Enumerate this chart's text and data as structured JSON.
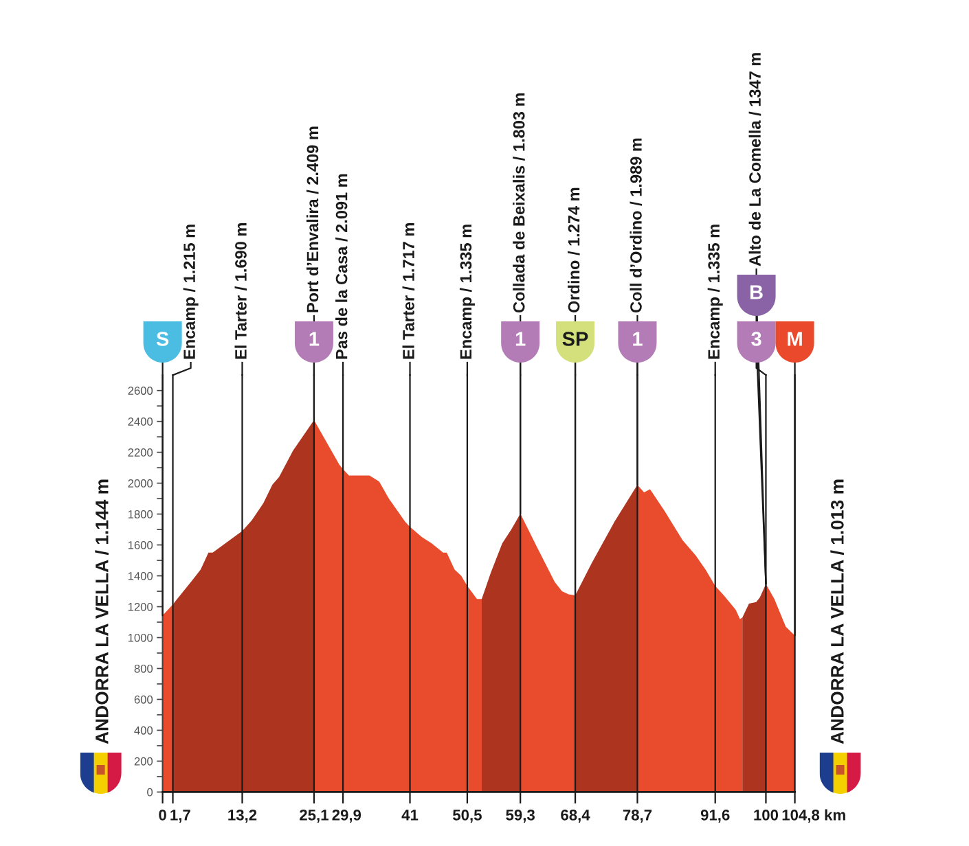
{
  "chart_data": {
    "type": "area",
    "ylabel": "ANDORRA LA VELLA / 1.144 m",
    "y2label": "ANDORRA LA VELLA / 1.013 m",
    "xlabel": "km",
    "x": [
      0,
      1.7,
      4.9,
      6.3,
      7.6,
      8.3,
      10.4,
      13.2,
      14.8,
      16.7,
      18.2,
      19.3,
      21.6,
      25.1,
      27.7,
      29.3,
      29.9,
      30.9,
      34.3,
      35.9,
      37.5,
      40.2,
      41,
      43.0,
      44.6,
      46.5,
      47.1,
      48.4,
      49.5,
      50.5,
      52.1,
      52.9,
      54.4,
      56.3,
      57.8,
      59.3,
      62.0,
      65.0,
      66.2,
      67.3,
      68.4,
      71.1,
      74.9,
      78.7,
      79.8,
      80.8,
      83.2,
      86.2,
      88.4,
      90.0,
      91.6,
      93.1,
      95.0,
      95.7,
      96.1,
      97.2,
      98.4,
      99.0,
      100,
      101.4,
      103.3,
      104.8
    ],
    "series": [
      {
        "color": "#e94c2d",
        "values": [
          1144,
          1215,
          null,
          null,
          null,
          null,
          null,
          null,
          null,
          null,
          null,
          null,
          null,
          2409,
          2230,
          2120,
          2091,
          2050,
          2050,
          2010,
          1900,
          1750,
          1717,
          1650,
          1610,
          1550,
          1550,
          1440,
          1400,
          1335,
          1250,
          1250,
          null,
          null,
          null,
          1803,
          1590,
          1360,
          1300,
          1280,
          1274,
          null,
          null,
          1989,
          1940,
          1960,
          1820,
          1630,
          1530,
          1440,
          1335,
          1270,
          1180,
          1120,
          1130,
          null,
          null,
          null,
          1347,
          1250,
          1070,
          1013
        ]
      },
      {
        "color": "#ad3520",
        "values": [
          null,
          1215,
          1370,
          1440,
          1550,
          1550,
          1610,
          1690,
          1760,
          1870,
          1990,
          2040,
          2210,
          2409,
          null,
          null,
          null,
          null,
          null,
          null,
          null,
          null,
          null,
          null,
          null,
          null,
          null,
          null,
          null,
          null,
          null,
          1250,
          1420,
          1610,
          1700,
          1803,
          null,
          null,
          null,
          null,
          1274,
          1480,
          1750,
          1989,
          null,
          null,
          null,
          null,
          null,
          null,
          null,
          null,
          null,
          null,
          1130,
          1220,
          1230,
          1260,
          1347,
          null,
          null,
          null
        ]
      }
    ],
    "xlim": [
      0,
      104.8
    ],
    "xticks": [
      0,
      {
        "value": 1.7,
        "label": "1,7"
      },
      {
        "value": 13.2,
        "label": "13,2"
      },
      {
        "value": 25.1,
        "label": "25,1"
      },
      {
        "value": 29.9,
        "label": "29,9"
      },
      41,
      {
        "value": 50.5,
        "label": "50,5"
      },
      {
        "value": 59.3,
        "label": "59,3"
      },
      {
        "value": 68.4,
        "label": "68,4"
      },
      {
        "value": 78.7,
        "label": "78,7"
      },
      {
        "value": 91.6,
        "label": "91,6"
      },
      100,
      {
        "value": 104.8,
        "label": "104,8"
      }
    ],
    "ylim": [
      0,
      2700
    ],
    "yticks": [
      0,
      {
        "value": 100,
        "label": null
      },
      200,
      {
        "value": 300,
        "label": null
      },
      400,
      {
        "value": 500,
        "label": null
      },
      600,
      {
        "value": 700,
        "label": null
      },
      800,
      {
        "value": 900,
        "label": null
      },
      1000,
      {
        "value": 1100,
        "label": null
      },
      1200,
      {
        "value": 1300,
        "label": null
      },
      1400,
      {
        "value": 1500,
        "label": null
      },
      1600,
      {
        "value": 1700,
        "label": null
      },
      1800,
      {
        "value": 1900,
        "label": null
      },
      2000,
      {
        "value": 2100,
        "label": null
      },
      2200,
      {
        "value": 2300,
        "label": null
      },
      2400,
      {
        "value": 2500,
        "label": null
      },
      2600
    ],
    "ref_lines": [
      {
        "axis": "x",
        "value": 1.7,
        "label": "Encamp / 1.215 m",
        "color": "#1a1a1a"
      },
      {
        "axis": "x",
        "value": 13.2,
        "label": "El Tarter / 1.690 m",
        "color": "#1a1a1a"
      },
      {
        "axis": "x",
        "value": 25.1,
        "label": "Port d’Envalira / 2.409 m",
        "color": "#1a1a1a"
      },
      {
        "axis": "x",
        "value": 29.9,
        "label": "Pas de la Casa / 2.091 m",
        "color": "#1a1a1a"
      },
      {
        "axis": "x",
        "value": 41,
        "label": "El Tarter / 1.717 m",
        "color": "#1a1a1a"
      },
      {
        "axis": "x",
        "value": 50.5,
        "label": "Encamp / 1.335 m",
        "color": "#1a1a1a"
      },
      {
        "axis": "x",
        "value": 59.3,
        "label": "Collada de Beixalis / 1.803 m",
        "color": "#1a1a1a"
      },
      {
        "axis": "x",
        "value": 68.4,
        "label": "Ordino / 1.274 m",
        "color": "#1a1a1a"
      },
      {
        "axis": "x",
        "value": 78.7,
        "label": "Coll d’Ordino / 1.989 m",
        "color": "#1a1a1a"
      },
      {
        "axis": "x",
        "value": 91.6,
        "label": "Encamp / 1.335 m",
        "color": "#1a1a1a"
      },
      {
        "axis": "x",
        "value": 100,
        "label": "Alto de La Comella / 1347 m",
        "color": "#1a1a1a"
      }
    ],
    "annotations": [
      {
        "text": "S",
        "x": 0,
        "y": 1144
      },
      {
        "text": "1",
        "x": 25.1,
        "y": 2409
      },
      {
        "text": "1",
        "x": 59.3,
        "y": 1803
      },
      {
        "text": "SP",
        "x": 68.4,
        "y": 1274
      },
      {
        "text": "1",
        "x": 78.7,
        "y": 1989
      },
      {
        "text": "3",
        "x": 100,
        "y": 1347
      },
      {
        "text": "B",
        "x": 100,
        "y": 1347
      },
      {
        "text": "M",
        "x": 104.8,
        "y": 1013
      }
    ]
  }
}
